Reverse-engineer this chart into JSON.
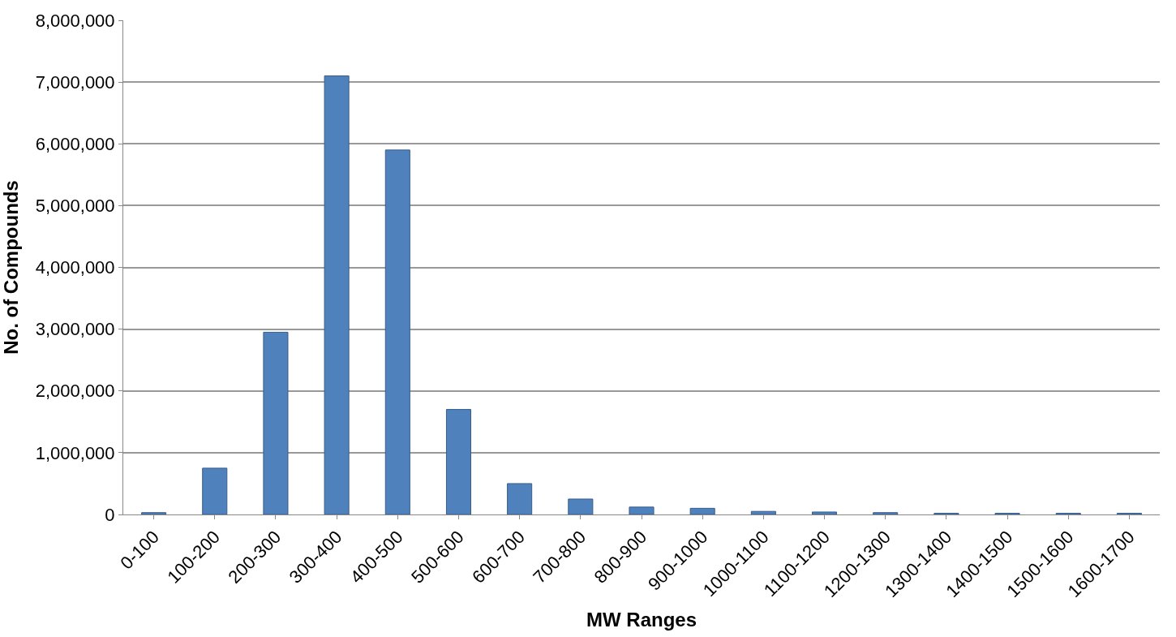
{
  "chart_data": {
    "type": "bar",
    "xlabel": "MW Ranges",
    "ylabel": "No. of Compounds",
    "categories": [
      "0-100",
      "100-200",
      "200-300",
      "300-400",
      "400-500",
      "500-600",
      "600-700",
      "700-800",
      "800-900",
      "900-1000",
      "1000-1100",
      "1100-1200",
      "1200-1300",
      "1300-1400",
      "1400-1500",
      "1500-1600",
      "1600-1700"
    ],
    "values": [
      30000,
      750000,
      2950000,
      7100000,
      5900000,
      1700000,
      500000,
      250000,
      120000,
      100000,
      50000,
      40000,
      30000,
      20000,
      20000,
      20000,
      20000
    ],
    "color": "#4f81bd",
    "ylim": [
      0,
      8000000
    ],
    "yticks": [
      {
        "value": 0,
        "label": "0"
      },
      {
        "value": 1000000,
        "label": "1,000,000"
      },
      {
        "value": 2000000,
        "label": "2,000,000"
      },
      {
        "value": 3000000,
        "label": "3,000,000"
      },
      {
        "value": 4000000,
        "label": "4,000,000"
      },
      {
        "value": 5000000,
        "label": "5,000,000"
      },
      {
        "value": 6000000,
        "label": "6,000,000"
      },
      {
        "value": 7000000,
        "label": "7,000,000"
      },
      {
        "value": 8000000,
        "label": "8,000,000"
      }
    ],
    "grid": "y"
  }
}
